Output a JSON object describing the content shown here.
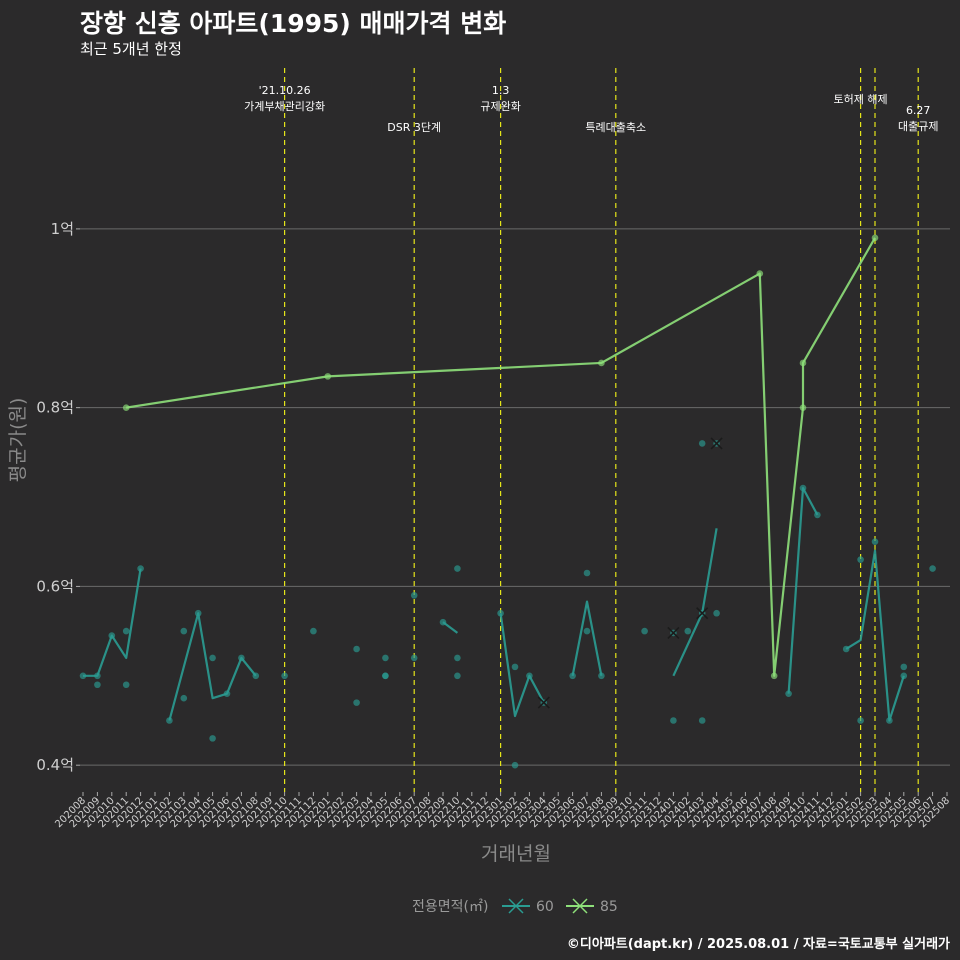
{
  "header": {
    "title": "장항 신흥 아파트(1995) 매매가격 변화",
    "subtitle": "최근 5개년 한정"
  },
  "caption": "©디아파트(dapt.kr) / 2025.08.01 / 자료=국토교통부 실거래가",
  "colors": {
    "background": "#2b2a2b",
    "grid": "#6a6a6a",
    "event_line": "#e5e51a",
    "series_60": "#2a9c92",
    "series_85": "#8ee07a"
  },
  "chart_data": {
    "type": "line",
    "title": "장항 신흥 아파트(1995) 매매가격 변화",
    "subtitle": "최근 5개년 한정",
    "xlabel": "거래년월",
    "ylabel": "평균가(원)",
    "ylim": [
      0.37,
      1.18
    ],
    "y_ticks": [
      {
        "value": 0.4,
        "label": "0.4억"
      },
      {
        "value": 0.6,
        "label": "0.6억"
      },
      {
        "value": 0.8,
        "label": "0.8억"
      },
      {
        "value": 1.0,
        "label": "1억"
      }
    ],
    "grid": true,
    "legend_position": "bottom",
    "legend_title": "전용면적(㎡)",
    "x_categories": [
      "202008",
      "202009",
      "202010",
      "202011",
      "202012",
      "202101",
      "202102",
      "202103",
      "202104",
      "202105",
      "202106",
      "202107",
      "202108",
      "202109",
      "202110",
      "202111",
      "202112",
      "202201",
      "202202",
      "202203",
      "202204",
      "202205",
      "202206",
      "202207",
      "202208",
      "202209",
      "202210",
      "202211",
      "202212",
      "202301",
      "202302",
      "202303",
      "202304",
      "202305",
      "202306",
      "202307",
      "202308",
      "202309",
      "202310",
      "202311",
      "202312",
      "202401",
      "202402",
      "202403",
      "202404",
      "202405",
      "202406",
      "202407",
      "202408",
      "202409",
      "202410",
      "202411",
      "202412",
      "202501",
      "202502",
      "202503",
      "202504",
      "202505",
      "202506",
      "202507",
      "202508"
    ],
    "events": [
      {
        "x": "202110",
        "label": "'21.10.26\n가계부채관리강화",
        "level": 1
      },
      {
        "x": "202207",
        "label": "DSR 3단계",
        "level": 2
      },
      {
        "x": "202301",
        "label": "1.3\n규제완화",
        "level": 1
      },
      {
        "x": "202309",
        "label": "특례대출축소",
        "level": 2
      },
      {
        "x": "202502",
        "label": "토허제 해제",
        "level": 1
      },
      {
        "x": "202503",
        "label": "",
        "level": 1
      },
      {
        "x": "202506",
        "label": "6.27\n대출규제",
        "level": 3
      }
    ],
    "series": [
      {
        "name": "60",
        "line": [
          {
            "x": "202008",
            "y": 0.5
          },
          {
            "x": "202009",
            "y": 0.5
          },
          {
            "x": "202010",
            "y": 0.545
          },
          {
            "x": "202011",
            "y": 0.52
          },
          {
            "x": "202012",
            "y": 0.62
          },
          null,
          {
            "x": "202102",
            "y": 0.45
          },
          {
            "x": "202104",
            "y": 0.57
          },
          {
            "x": "202105",
            "y": 0.475
          },
          {
            "x": "202106",
            "y": 0.48
          },
          {
            "x": "202107",
            "y": 0.52
          },
          {
            "x": "202108",
            "y": 0.5
          },
          null,
          {
            "x": "202209",
            "y": 0.56
          },
          {
            "x": "202210",
            "y": 0.548
          },
          null,
          {
            "x": "202301",
            "y": 0.57
          },
          {
            "x": "202302",
            "y": 0.455
          },
          {
            "x": "202303",
            "y": 0.5
          },
          {
            "x": "202304",
            "y": 0.47
          },
          null,
          {
            "x": "202306",
            "y": 0.5
          },
          {
            "x": "202307",
            "y": 0.583
          },
          {
            "x": "202308",
            "y": 0.5
          },
          null,
          {
            "x": "202401",
            "y": 0.5
          },
          {
            "x": "202403",
            "y": 0.57
          },
          {
            "x": "202404",
            "y": 0.665
          },
          null,
          {
            "x": "202409",
            "y": 0.48
          },
          {
            "x": "202410",
            "y": 0.71
          },
          {
            "x": "202411",
            "y": 0.68
          },
          null,
          {
            "x": "202501",
            "y": 0.53
          },
          {
            "x": "202502",
            "y": 0.54
          },
          {
            "x": "202503",
            "y": 0.64
          },
          {
            "x": "202504",
            "y": 0.45
          },
          {
            "x": "202505",
            "y": 0.5
          }
        ],
        "points": [
          {
            "x": "202008",
            "y": 0.5
          },
          {
            "x": "202009",
            "y": 0.49
          },
          {
            "x": "202009",
            "y": 0.5
          },
          {
            "x": "202010",
            "y": 0.545
          },
          {
            "x": "202011",
            "y": 0.55
          },
          {
            "x": "202011",
            "y": 0.49
          },
          {
            "x": "202012",
            "y": 0.62
          },
          {
            "x": "202102",
            "y": 0.45
          },
          {
            "x": "202103",
            "y": 0.55
          },
          {
            "x": "202103",
            "y": 0.475
          },
          {
            "x": "202104",
            "y": 0.57
          },
          {
            "x": "202105",
            "y": 0.52
          },
          {
            "x": "202105",
            "y": 0.43
          },
          {
            "x": "202106",
            "y": 0.48
          },
          {
            "x": "202107",
            "y": 0.52
          },
          {
            "x": "202108",
            "y": 0.5
          },
          {
            "x": "202110",
            "y": 0.5
          },
          {
            "x": "202112",
            "y": 0.55
          },
          {
            "x": "202203",
            "y": 0.53
          },
          {
            "x": "202203",
            "y": 0.47
          },
          {
            "x": "202205",
            "y": 0.52
          },
          {
            "x": "202205",
            "y": 0.5
          },
          {
            "x": "202205",
            "y": 0.5
          },
          {
            "x": "202207",
            "y": 0.59
          },
          {
            "x": "202207",
            "y": 0.52
          },
          {
            "x": "202209",
            "y": 0.56
          },
          {
            "x": "202210",
            "y": 0.62
          },
          {
            "x": "202210",
            "y": 0.52
          },
          {
            "x": "202210",
            "y": 0.5
          },
          {
            "x": "202301",
            "y": 0.57
          },
          {
            "x": "202302",
            "y": 0.51
          },
          {
            "x": "202302",
            "y": 0.4
          },
          {
            "x": "202303",
            "y": 0.5
          },
          {
            "x": "202304",
            "y": 0.47
          },
          {
            "x": "202306",
            "y": 0.5
          },
          {
            "x": "202307",
            "y": 0.615
          },
          {
            "x": "202307",
            "y": 0.55
          },
          {
            "x": "202308",
            "y": 0.5
          },
          {
            "x": "202311",
            "y": 0.55
          },
          {
            "x": "202401",
            "y": 0.548
          },
          {
            "x": "202401",
            "y": 0.45
          },
          {
            "x": "202402",
            "y": 0.55
          },
          {
            "x": "202403",
            "y": 0.57
          },
          {
            "x": "202403",
            "y": 0.76
          },
          {
            "x": "202403",
            "y": 0.45
          },
          {
            "x": "202404",
            "y": 0.76
          },
          {
            "x": "202404",
            "y": 0.57
          },
          {
            "x": "202409",
            "y": 0.48
          },
          {
            "x": "202410",
            "y": 0.71
          },
          {
            "x": "202411",
            "y": 0.68
          },
          {
            "x": "202501",
            "y": 0.53
          },
          {
            "x": "202502",
            "y": 0.63
          },
          {
            "x": "202502",
            "y": 0.45
          },
          {
            "x": "202503",
            "y": 0.65
          },
          {
            "x": "202504",
            "y": 0.45
          },
          {
            "x": "202505",
            "y": 0.51
          },
          {
            "x": "202505",
            "y": 0.5
          },
          {
            "x": "202507",
            "y": 0.62
          }
        ],
        "x_marks": [
          {
            "x": "202304",
            "y": 0.47
          },
          {
            "x": "202401",
            "y": 0.548
          },
          {
            "x": "202403",
            "y": 0.57
          },
          {
            "x": "202404",
            "y": 0.76
          }
        ]
      },
      {
        "name": "85",
        "line": [
          {
            "x": "202011",
            "y": 0.8
          },
          {
            "x": "202201",
            "y": 0.835
          },
          {
            "x": "202308",
            "y": 0.85
          },
          {
            "x": "202407",
            "y": 0.95
          },
          {
            "x": "202408",
            "y": 0.5
          },
          {
            "x": "202410",
            "y": 0.8
          },
          {
            "x": "202410",
            "y": 0.85
          },
          {
            "x": "202503",
            "y": 0.99
          }
        ],
        "points": [
          {
            "x": "202011",
            "y": 0.8
          },
          {
            "x": "202201",
            "y": 0.835
          },
          {
            "x": "202308",
            "y": 0.85
          },
          {
            "x": "202407",
            "y": 0.95
          },
          {
            "x": "202408",
            "y": 0.5
          },
          {
            "x": "202410",
            "y": 0.85
          },
          {
            "x": "202410",
            "y": 0.8
          },
          {
            "x": "202503",
            "y": 0.99
          }
        ],
        "x_marks": []
      }
    ]
  }
}
